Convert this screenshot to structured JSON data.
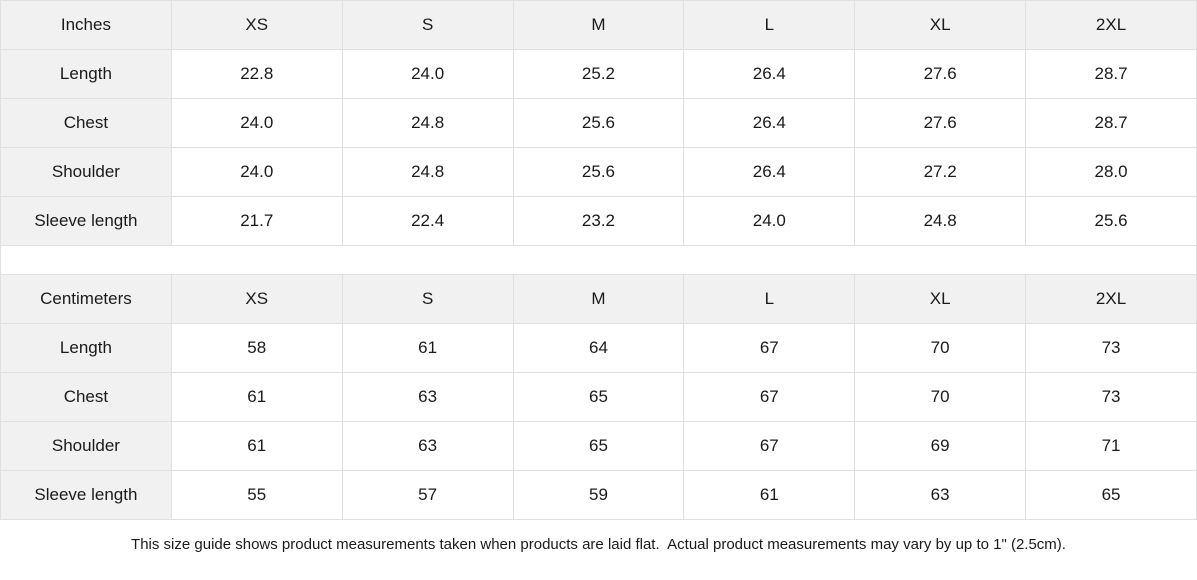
{
  "colors": {
    "header_bg": "#f1f1f1",
    "border": "#e0e0e0",
    "text": "#1a1a1a",
    "page_bg": "#ffffff"
  },
  "size_guide": {
    "units": [
      {
        "unit_label": "Inches",
        "sizes": [
          "XS",
          "S",
          "M",
          "L",
          "XL",
          "2XL"
        ],
        "rows": [
          {
            "label": "Length",
            "values": [
              "22.8",
              "24.0",
              "25.2",
              "26.4",
              "27.6",
              "28.7"
            ]
          },
          {
            "label": "Chest",
            "values": [
              "24.0",
              "24.8",
              "25.6",
              "26.4",
              "27.6",
              "28.7"
            ]
          },
          {
            "label": "Shoulder",
            "values": [
              "24.0",
              "24.8",
              "25.6",
              "26.4",
              "27.2",
              "28.0"
            ]
          },
          {
            "label": "Sleeve length",
            "values": [
              "21.7",
              "22.4",
              "23.2",
              "24.0",
              "24.8",
              "25.6"
            ]
          }
        ]
      },
      {
        "unit_label": "Centimeters",
        "sizes": [
          "XS",
          "S",
          "M",
          "L",
          "XL",
          "2XL"
        ],
        "rows": [
          {
            "label": "Length",
            "values": [
              "58",
              "61",
              "64",
              "67",
              "70",
              "73"
            ]
          },
          {
            "label": "Chest",
            "values": [
              "61",
              "63",
              "65",
              "67",
              "70",
              "73"
            ]
          },
          {
            "label": "Shoulder",
            "values": [
              "61",
              "63",
              "65",
              "67",
              "69",
              "71"
            ]
          },
          {
            "label": "Sleeve length",
            "values": [
              "55",
              "57",
              "59",
              "61",
              "63",
              "65"
            ]
          }
        ]
      }
    ],
    "footer_note": "This size guide shows product measurements taken when products are laid flat.  Actual product measurements may vary by up to 1\" (2.5cm)."
  }
}
